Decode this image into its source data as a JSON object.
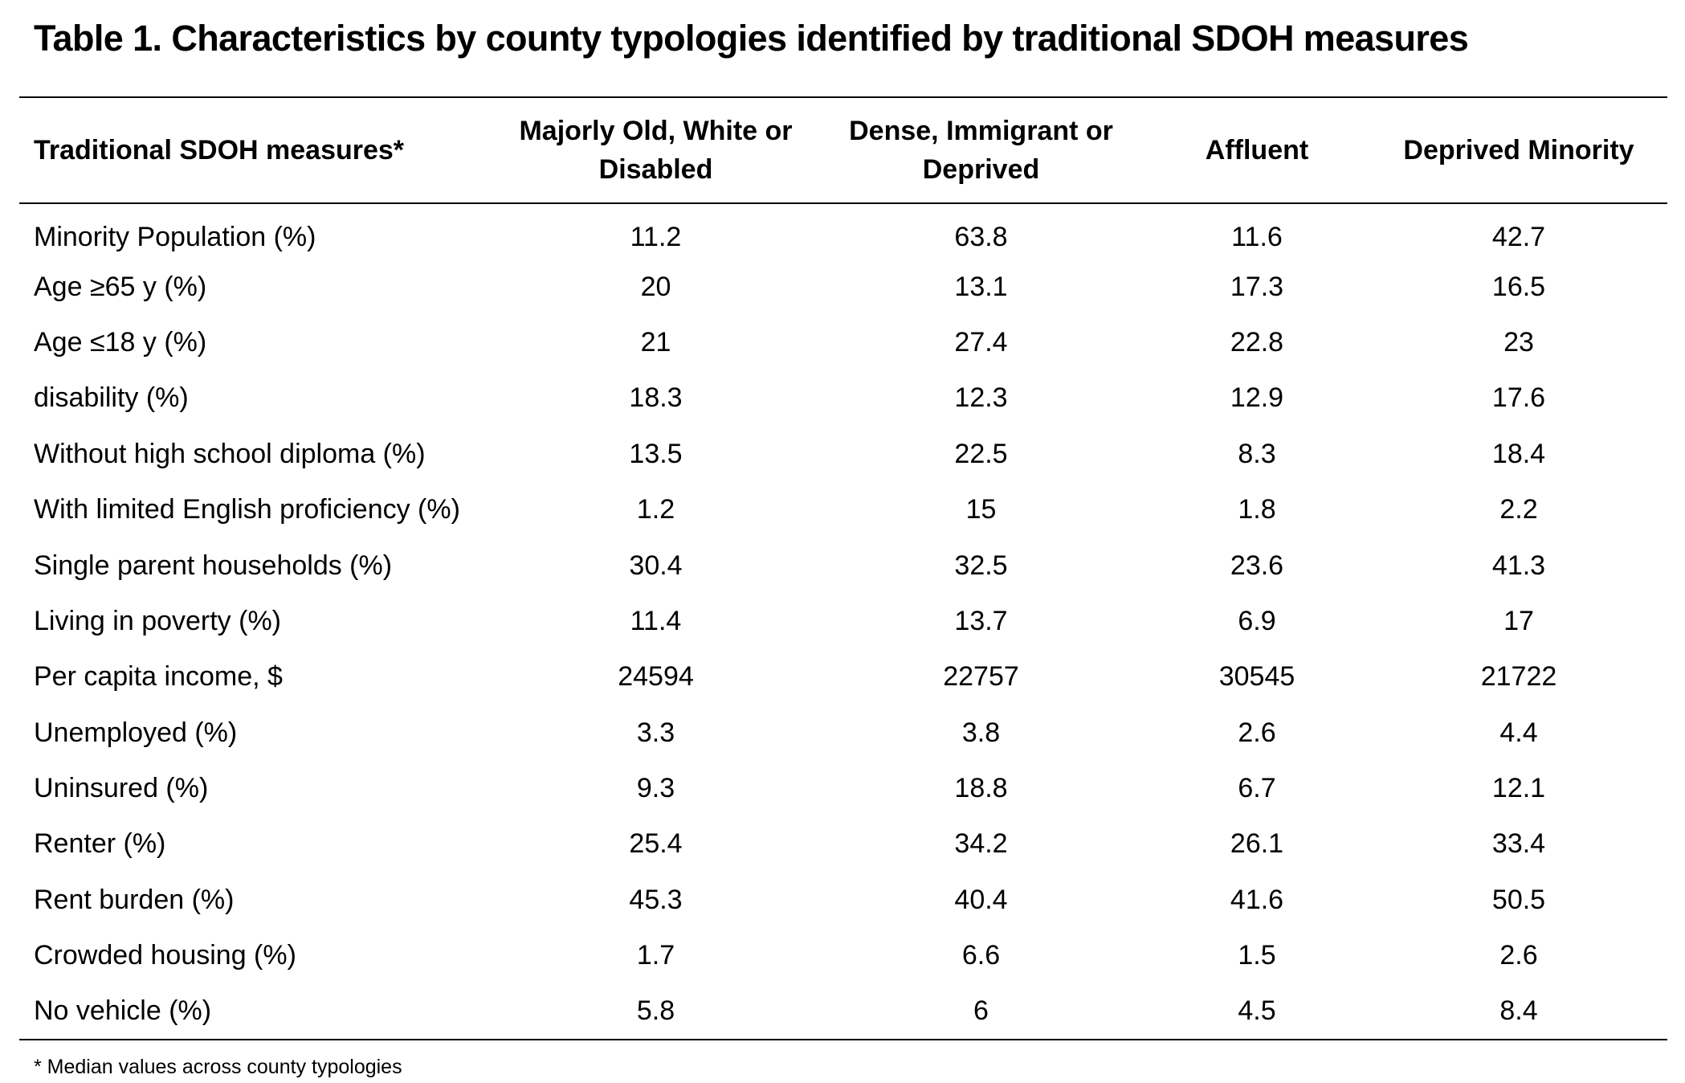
{
  "title": "Table 1. Characteristics by county typologies identified by traditional SDOH measures",
  "columns": [
    "Traditional SDOH measures*",
    "Majorly Old, White or Disabled",
    "Dense, Immigrant or Deprived",
    "Affluent",
    "Deprived Minority"
  ],
  "rows": [
    [
      "Minority Population (%)",
      "11.2",
      "63.8",
      "11.6",
      "42.7"
    ],
    [
      "Age ≥65 y (%)",
      "20",
      "13.1",
      "17.3",
      "16.5"
    ],
    [
      "Age ≤18 y (%)",
      "21",
      "27.4",
      "22.8",
      "23"
    ],
    [
      "disability (%)",
      "18.3",
      "12.3",
      "12.9",
      "17.6"
    ],
    [
      "Without high school diploma (%)",
      "13.5",
      "22.5",
      "8.3",
      "18.4"
    ],
    [
      "With limited English proficiency (%)",
      "1.2",
      "15",
      "1.8",
      "2.2"
    ],
    [
      "Single parent households (%)",
      "30.4",
      "32.5",
      "23.6",
      "41.3"
    ],
    [
      "Living in poverty (%)",
      "11.4",
      "13.7",
      "6.9",
      "17"
    ],
    [
      "Per capita income, $",
      "24594",
      "22757",
      "30545",
      "21722"
    ],
    [
      "Unemployed (%)",
      "3.3",
      "3.8",
      "2.6",
      "4.4"
    ],
    [
      "Uninsured (%)",
      "9.3",
      "18.8",
      "6.7",
      "12.1"
    ],
    [
      "Renter (%)",
      "25.4",
      "34.2",
      "26.1",
      "33.4"
    ],
    [
      "Rent burden (%)",
      "45.3",
      "40.4",
      "41.6",
      "50.5"
    ],
    [
      "Crowded housing (%)",
      "1.7",
      "6.6",
      "1.5",
      "2.6"
    ],
    [
      "No vehicle (%)",
      "5.8",
      "6",
      "4.5",
      "8.4"
    ]
  ],
  "footnote": "* Median values across county typologies"
}
